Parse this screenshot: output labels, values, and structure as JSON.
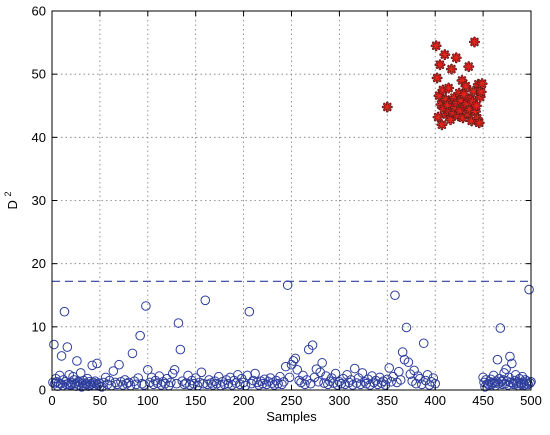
{
  "chart_data": {
    "type": "scatter",
    "xlabel": "Samples",
    "ylabel": "D",
    "ylabel_superscript": "2",
    "xlim": [
      0,
      500
    ],
    "ylim": [
      0,
      60
    ],
    "xticks": [
      "0",
      "50",
      "100",
      "150",
      "200",
      "250",
      "300",
      "350",
      "400",
      "450",
      "500"
    ],
    "yticks": [
      "0",
      "10",
      "20",
      "30",
      "40",
      "50",
      "60"
    ],
    "grid": true,
    "legend": "none",
    "threshold": 17.2,
    "colors": {
      "normal": "#2e3e9c",
      "fault_fill": "#e0231b",
      "fault_edge": "#6b1a1a",
      "threshold": "#2e3e9c",
      "grid": "#7a7a7a"
    },
    "series": [
      {
        "marker": "circle",
        "points": [
          [
            1,
            1.2
          ],
          [
            2,
            7.2
          ],
          [
            3,
            1.0
          ],
          [
            4,
            1.8
          ],
          [
            5,
            1.3
          ],
          [
            6,
            0.6
          ],
          [
            7,
            1.1
          ],
          [
            8,
            2.3
          ],
          [
            9,
            1.0
          ],
          [
            10,
            5.4
          ],
          [
            11,
            0.7
          ],
          [
            12,
            1.6
          ],
          [
            13,
            12.4
          ],
          [
            14,
            1.3
          ],
          [
            15,
            0.9
          ],
          [
            16,
            6.8
          ],
          [
            17,
            1.0
          ],
          [
            18,
            2.4
          ],
          [
            19,
            0.8
          ],
          [
            20,
            1.2
          ],
          [
            21,
            0.9
          ],
          [
            22,
            2.1
          ],
          [
            23,
            1.6
          ],
          [
            24,
            1.0
          ],
          [
            25,
            0.6
          ],
          [
            26,
            4.6
          ],
          [
            27,
            1.3
          ],
          [
            28,
            0.8
          ],
          [
            29,
            1.2
          ],
          [
            30,
            2.7
          ],
          [
            31,
            0.5
          ],
          [
            32,
            1.0
          ],
          [
            33,
            1.5
          ],
          [
            34,
            0.7
          ],
          [
            35,
            1.1
          ],
          [
            36,
            0.9
          ],
          [
            37,
            1.8
          ],
          [
            38,
            0.6
          ],
          [
            39,
            1.3
          ],
          [
            40,
            0.8
          ],
          [
            41,
            1.0
          ],
          [
            42,
            3.9
          ],
          [
            43,
            1.2
          ],
          [
            44,
            0.7
          ],
          [
            45,
            1.4
          ],
          [
            46,
            1.0
          ],
          [
            47,
            4.2
          ],
          [
            48,
            0.8
          ],
          [
            49,
            1.1
          ],
          [
            50,
            0.6
          ],
          [
            52,
            0.5
          ],
          [
            54,
            1.2
          ],
          [
            56,
            2.0
          ],
          [
            58,
            0.9
          ],
          [
            60,
            1.5
          ],
          [
            62,
            0.7
          ],
          [
            64,
            3.0
          ],
          [
            66,
            1.2
          ],
          [
            68,
            0.9
          ],
          [
            70,
            4.0
          ],
          [
            72,
            1.3
          ],
          [
            74,
            0.8
          ],
          [
            76,
            1.6
          ],
          [
            78,
            1.0
          ],
          [
            80,
            1.2
          ],
          [
            82,
            0.7
          ],
          [
            84,
            5.8
          ],
          [
            86,
            1.4
          ],
          [
            88,
            0.9
          ],
          [
            90,
            1.9
          ],
          [
            92,
            8.6
          ],
          [
            94,
            1.0
          ],
          [
            96,
            0.8
          ],
          [
            98,
            13.3
          ],
          [
            100,
            3.2
          ],
          [
            102,
            1.2
          ],
          [
            104,
            2.0
          ],
          [
            106,
            0.9
          ],
          [
            108,
            1.5
          ],
          [
            110,
            1.1
          ],
          [
            112,
            2.2
          ],
          [
            114,
            0.8
          ],
          [
            116,
            1.3
          ],
          [
            118,
            1.0
          ],
          [
            120,
            1.8
          ],
          [
            122,
            0.7
          ],
          [
            124,
            1.2
          ],
          [
            126,
            2.6
          ],
          [
            128,
            3.2
          ],
          [
            130,
            1.0
          ],
          [
            132,
            10.6
          ],
          [
            134,
            6.4
          ],
          [
            136,
            1.4
          ],
          [
            138,
            0.9
          ],
          [
            140,
            1.1
          ],
          [
            142,
            2.3
          ],
          [
            144,
            0.8
          ],
          [
            146,
            1.5
          ],
          [
            148,
            1.0
          ],
          [
            150,
            1.9
          ],
          [
            152,
            0.7
          ],
          [
            154,
            1.2
          ],
          [
            156,
            2.8
          ],
          [
            158,
            1.0
          ],
          [
            160,
            14.2
          ],
          [
            162,
            0.9
          ],
          [
            164,
            1.6
          ],
          [
            166,
            1.1
          ],
          [
            168,
            0.8
          ],
          [
            170,
            1.4
          ],
          [
            172,
            1.0
          ],
          [
            174,
            2.1
          ],
          [
            176,
            0.7
          ],
          [
            178,
            1.3
          ],
          [
            180,
            0.9
          ],
          [
            182,
            1.6
          ],
          [
            184,
            1.0
          ],
          [
            186,
            2.0
          ],
          [
            188,
            0.8
          ],
          [
            190,
            1.5
          ],
          [
            192,
            1.1
          ],
          [
            194,
            2.4
          ],
          [
            196,
            0.9
          ],
          [
            198,
            1.8
          ],
          [
            200,
            1.2
          ],
          [
            202,
            0.7
          ],
          [
            204,
            2.3
          ],
          [
            206,
            12.4
          ],
          [
            208,
            1.0
          ],
          [
            210,
            1.5
          ],
          [
            212,
            2.6
          ],
          [
            214,
            1.2
          ],
          [
            216,
            0.8
          ],
          [
            218,
            1.4
          ],
          [
            220,
            1.0
          ],
          [
            222,
            1.7
          ],
          [
            224,
            0.9
          ],
          [
            226,
            1.3
          ],
          [
            228,
            1.9
          ],
          [
            230,
            1.1
          ],
          [
            232,
            0.8
          ],
          [
            234,
            1.5
          ],
          [
            236,
            1.0
          ],
          [
            238,
            2.1
          ],
          [
            240,
            0.9
          ],
          [
            242,
            1.3
          ],
          [
            244,
            3.7
          ],
          [
            246,
            16.6
          ],
          [
            248,
            2.0
          ],
          [
            250,
            4.0
          ],
          [
            252,
            4.6
          ],
          [
            254,
            5.0
          ],
          [
            256,
            3.2
          ],
          [
            258,
            1.5
          ],
          [
            260,
            1.2
          ],
          [
            262,
            2.3
          ],
          [
            264,
            0.9
          ],
          [
            266,
            1.6
          ],
          [
            268,
            6.4
          ],
          [
            270,
            1.0
          ],
          [
            272,
            7.1
          ],
          [
            274,
            2.0
          ],
          [
            276,
            3.3
          ],
          [
            278,
            1.3
          ],
          [
            280,
            2.8
          ],
          [
            282,
            4.3
          ],
          [
            284,
            1.1
          ],
          [
            286,
            2.2
          ],
          [
            288,
            0.9
          ],
          [
            290,
            1.4
          ],
          [
            292,
            1.9
          ],
          [
            294,
            1.1
          ],
          [
            296,
            2.6
          ],
          [
            298,
            0.8
          ],
          [
            300,
            1.3
          ],
          [
            302,
            1.0
          ],
          [
            304,
            1.8
          ],
          [
            306,
            0.9
          ],
          [
            308,
            2.4
          ],
          [
            310,
            1.2
          ],
          [
            312,
            1.6
          ],
          [
            314,
            0.8
          ],
          [
            316,
            3.4
          ],
          [
            318,
            1.1
          ],
          [
            320,
            1.9
          ],
          [
            322,
            0.9
          ],
          [
            324,
            2.7
          ],
          [
            326,
            1.3
          ],
          [
            328,
            1.0
          ],
          [
            330,
            1.7
          ],
          [
            332,
            0.8
          ],
          [
            334,
            2.2
          ],
          [
            336,
            1.2
          ],
          [
            338,
            1.5
          ],
          [
            340,
            0.9
          ],
          [
            342,
            2.0
          ],
          [
            344,
            1.1
          ],
          [
            346,
            1.4
          ],
          [
            348,
            0.8
          ],
          [
            350,
            1.7
          ],
          [
            352,
            3.5
          ],
          [
            354,
            1.3
          ],
          [
            356,
            2.1
          ],
          [
            358,
            15.0
          ],
          [
            360,
            1.2
          ],
          [
            362,
            2.9
          ],
          [
            364,
            1.6
          ],
          [
            366,
            6.0
          ],
          [
            368,
            4.8
          ],
          [
            370,
            9.9
          ],
          [
            372,
            4.4
          ],
          [
            374,
            2.5
          ],
          [
            376,
            1.4
          ],
          [
            378,
            3.1
          ],
          [
            380,
            1.0
          ],
          [
            382,
            2.2
          ],
          [
            384,
            1.8
          ],
          [
            386,
            0.9
          ],
          [
            388,
            7.4
          ],
          [
            390,
            1.5
          ],
          [
            392,
            2.4
          ],
          [
            394,
            0.8
          ],
          [
            396,
            1.3
          ],
          [
            398,
            1.9
          ],
          [
            400,
            1.0
          ],
          [
            450,
            2.0
          ],
          [
            451,
            1.2
          ],
          [
            452,
            0.5
          ],
          [
            453,
            1.6
          ],
          [
            455,
            1.0
          ],
          [
            456,
            0.8
          ],
          [
            457,
            1.3
          ],
          [
            458,
            1.7
          ],
          [
            459,
            0.9
          ],
          [
            460,
            1.2
          ],
          [
            461,
            2.3
          ],
          [
            462,
            1.1
          ],
          [
            463,
            0.7
          ],
          [
            464,
            1.4
          ],
          [
            465,
            4.8
          ],
          [
            466,
            1.0
          ],
          [
            467,
            1.8
          ],
          [
            468,
            9.8
          ],
          [
            469,
            1.3
          ],
          [
            470,
            0.9
          ],
          [
            471,
            1.6
          ],
          [
            472,
            2.7
          ],
          [
            473,
            1.0
          ],
          [
            474,
            3.3
          ],
          [
            475,
            1.4
          ],
          [
            476,
            0.8
          ],
          [
            477,
            2.0
          ],
          [
            478,
            5.3
          ],
          [
            479,
            1.2
          ],
          [
            480,
            4.2
          ],
          [
            481,
            1.1
          ],
          [
            482,
            0.9
          ],
          [
            483,
            1.5
          ],
          [
            484,
            2.4
          ],
          [
            485,
            1.0
          ],
          [
            486,
            1.3
          ],
          [
            487,
            0.7
          ],
          [
            488,
            1.8
          ],
          [
            489,
            1.1
          ],
          [
            490,
            0.9
          ],
          [
            491,
            2.1
          ],
          [
            492,
            1.2
          ],
          [
            493,
            0.8
          ],
          [
            494,
            1.6
          ],
          [
            495,
            1.0
          ],
          [
            496,
            1.4
          ],
          [
            497,
            0.9
          ],
          [
            498,
            15.9
          ],
          [
            499,
            1.1
          ],
          [
            500,
            1.3
          ]
        ]
      },
      {
        "marker": "star",
        "points": [
          [
            350,
            44.8
          ],
          [
            401,
            54.5
          ],
          [
            402,
            49.4
          ],
          [
            403,
            43.2
          ],
          [
            404,
            46.6
          ],
          [
            405,
            51.5
          ],
          [
            406,
            45.2
          ],
          [
            407,
            42.0
          ],
          [
            408,
            47.5
          ],
          [
            409,
            44.5
          ],
          [
            410,
            53.1
          ],
          [
            411,
            46.0
          ],
          [
            412,
            43.6
          ],
          [
            413,
            45.1
          ],
          [
            414,
            47.8
          ],
          [
            415,
            44.0
          ],
          [
            416,
            42.8
          ],
          [
            417,
            50.8
          ],
          [
            418,
            45.9
          ],
          [
            419,
            43.9
          ],
          [
            420,
            46.3
          ],
          [
            421,
            44.7
          ],
          [
            422,
            52.6
          ],
          [
            423,
            45.5
          ],
          [
            424,
            43.4
          ],
          [
            425,
            47.0
          ],
          [
            426,
            44.2
          ],
          [
            427,
            45.8
          ],
          [
            428,
            49.0
          ],
          [
            429,
            43.1
          ],
          [
            430,
            46.8
          ],
          [
            431,
            44.9
          ],
          [
            432,
            48.1
          ],
          [
            433,
            45.3
          ],
          [
            434,
            43.7
          ],
          [
            435,
            51.2
          ],
          [
            436,
            44.4
          ],
          [
            437,
            46.1
          ],
          [
            438,
            42.6
          ],
          [
            439,
            45.6
          ],
          [
            440,
            47.3
          ],
          [
            441,
            55.1
          ],
          [
            442,
            44.1
          ],
          [
            443,
            45.0
          ],
          [
            444,
            43.0
          ],
          [
            445,
            48.4
          ],
          [
            446,
            42.3
          ],
          [
            447,
            46.4
          ],
          [
            448,
            47.2
          ],
          [
            449,
            48.5
          ]
        ]
      }
    ]
  }
}
